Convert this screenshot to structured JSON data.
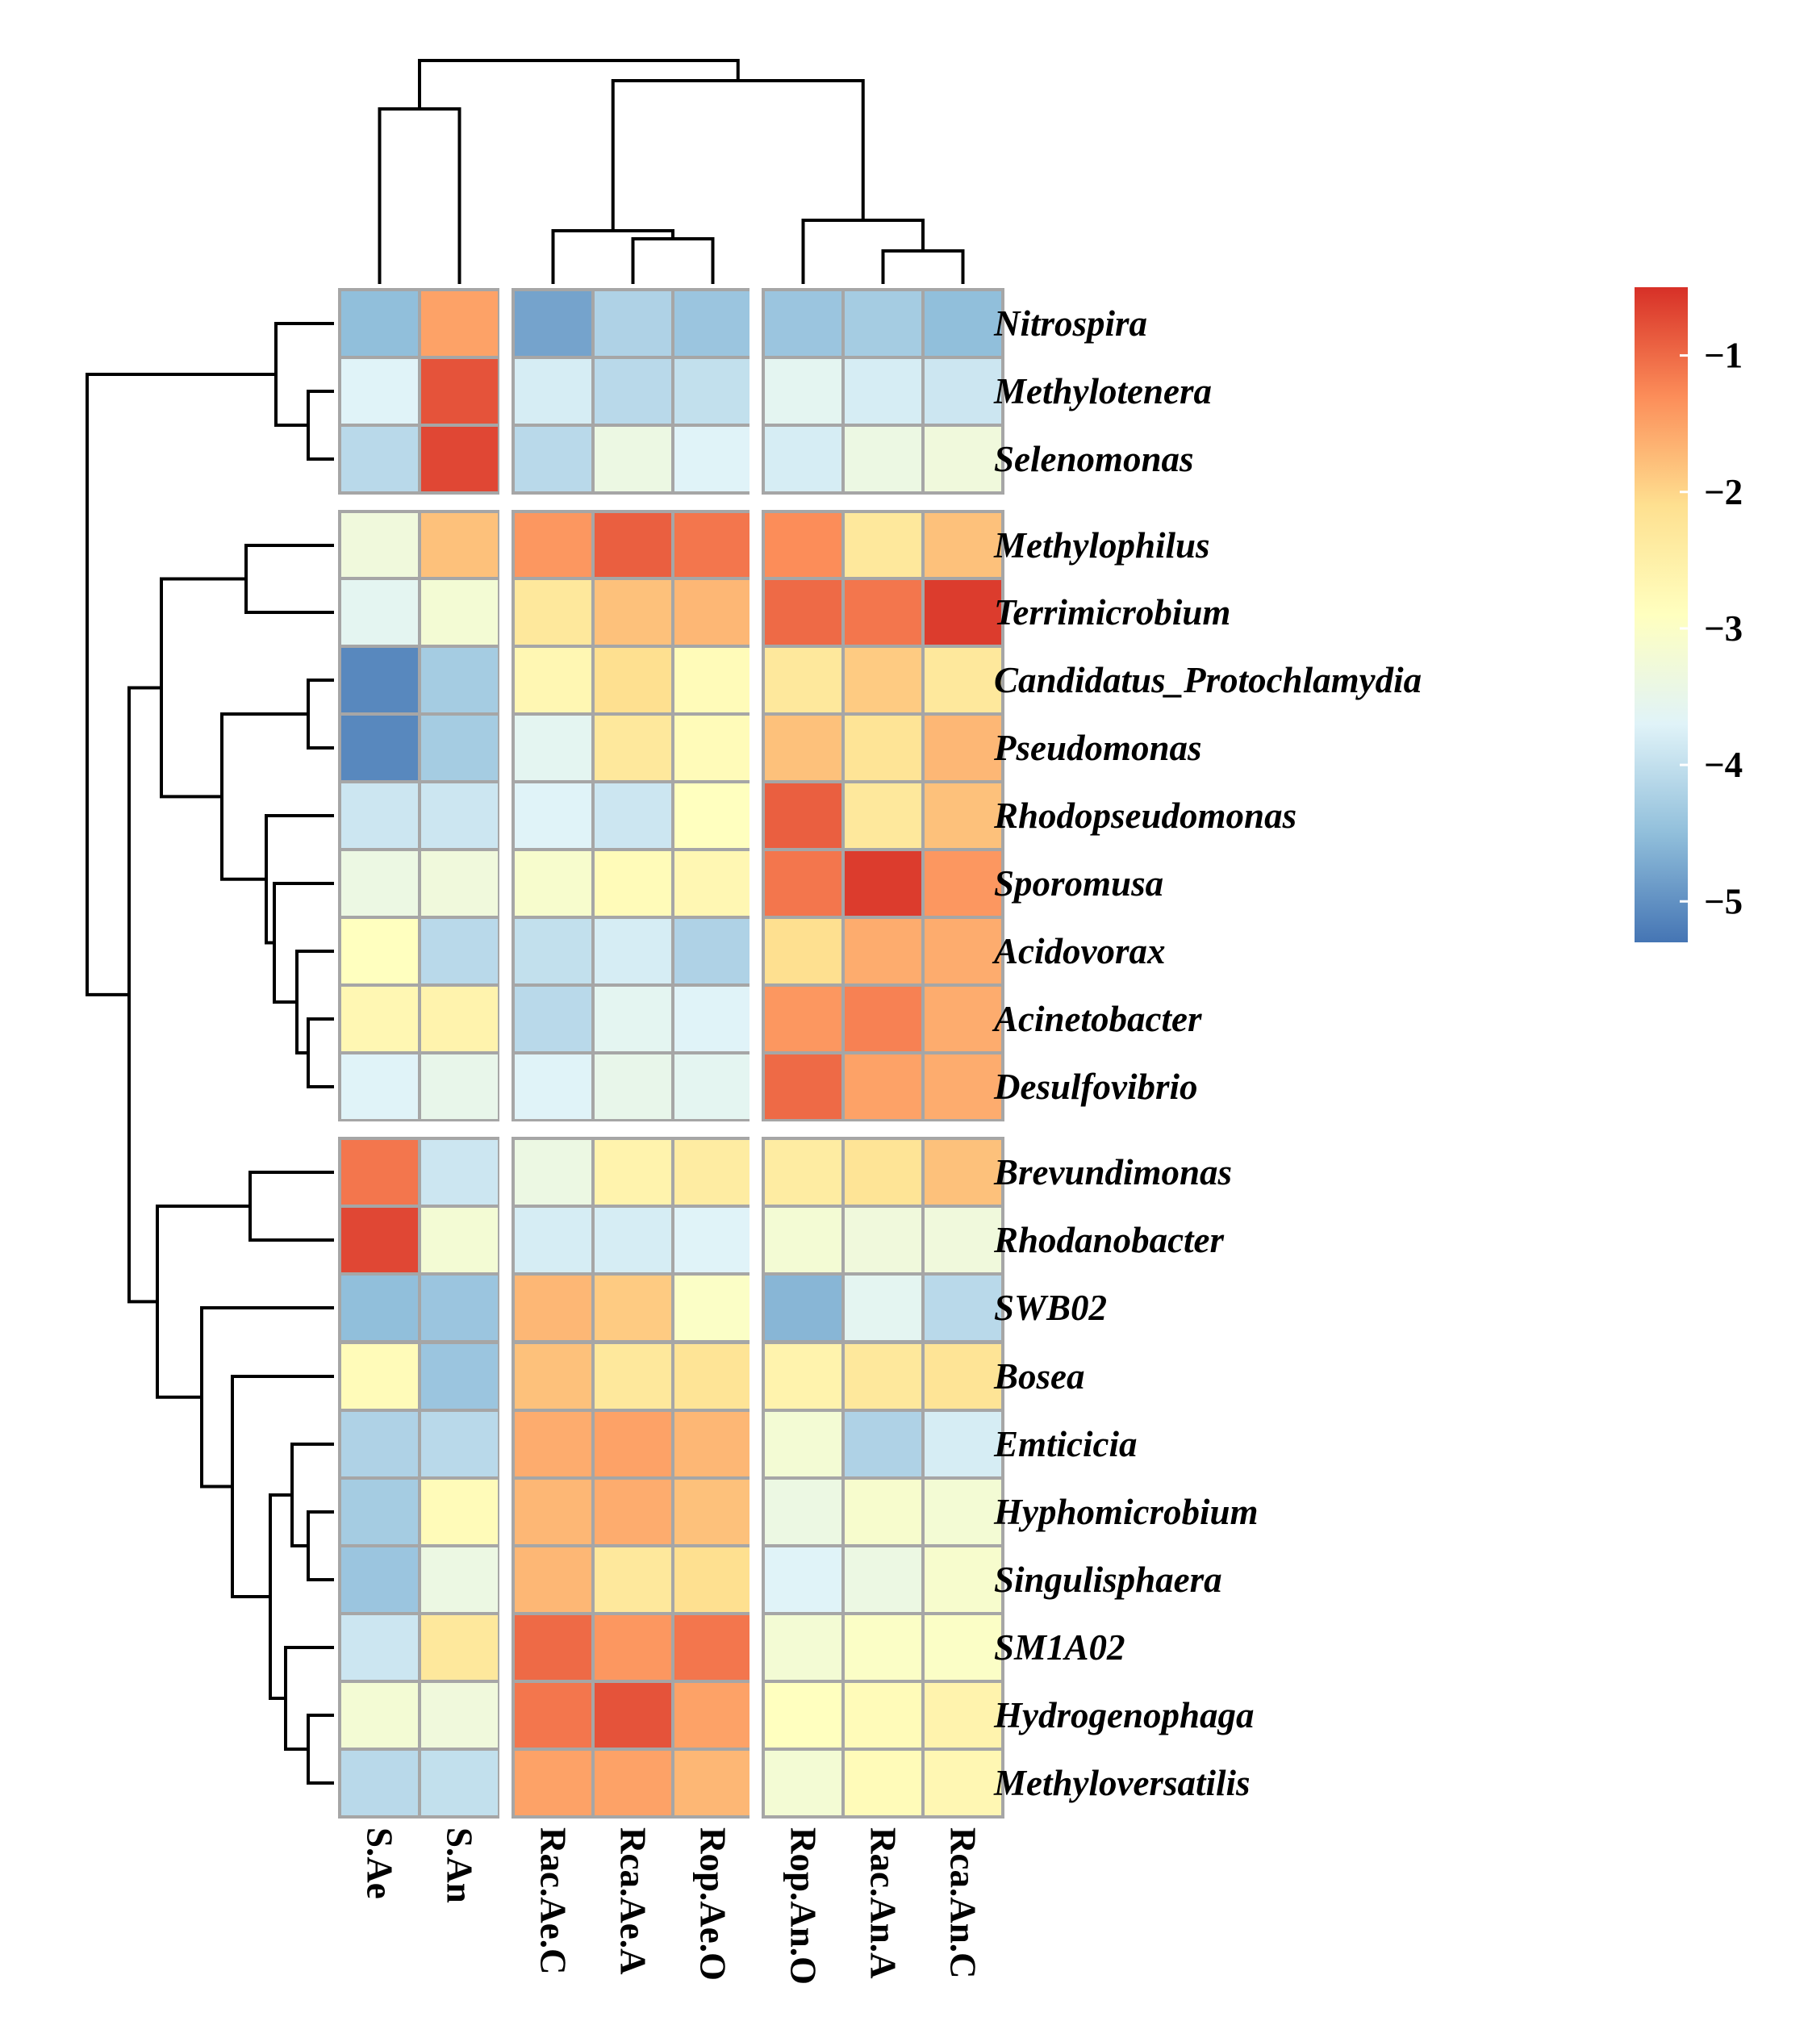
{
  "chart_data": {
    "type": "heatmap",
    "title": "",
    "xlabel": "",
    "ylabel": "",
    "columns": [
      "S.Ae",
      "S.An",
      "Rac.Ae.C",
      "Rca.Ae.A",
      "Rop.Ae.O",
      "Rop.An.O",
      "Rac.An.A",
      "Rca.An.C"
    ],
    "rows": [
      "Nitrospira",
      "Methylotenera",
      "Selenomonas",
      "Methylophilus",
      "Terrimicrobium",
      "Candidatus_Protochlamydia",
      "Pseudomonas",
      "Rhodopseudomonas",
      "Sporomusa",
      "Acidovorax",
      "Acinetobacter",
      "Desulfovibrio",
      "Brevundimonas",
      "Rhodanobacter",
      "SWB02",
      "Bosea",
      "Emticicia",
      "Hyphomicrobium",
      "Singulisphaera",
      "SM1A02",
      "Hydrogenophaga",
      "Methyloversatilis"
    ],
    "values": [
      [
        -4.5,
        -1.5,
        -4.8,
        -4.2,
        -4.4,
        -4.4,
        -4.3,
        -4.5
      ],
      [
        -3.7,
        -0.8,
        -3.8,
        -4.1,
        -4.0,
        -3.6,
        -3.8,
        -3.9
      ],
      [
        -4.1,
        -0.7,
        -4.1,
        -3.4,
        -3.7,
        -3.8,
        -3.4,
        -3.3
      ],
      [
        -3.3,
        -1.8,
        -1.4,
        -0.9,
        -1.1,
        -1.3,
        -2.3,
        -1.8
      ],
      [
        -3.6,
        -3.2,
        -2.3,
        -1.8,
        -1.7,
        -1.0,
        -1.1,
        -0.6
      ],
      [
        -5.1,
        -4.3,
        -2.7,
        -2.1,
        -2.8,
        -2.3,
        -1.9,
        -2.3
      ],
      [
        -5.1,
        -4.3,
        -3.6,
        -2.3,
        -2.8,
        -1.8,
        -2.2,
        -1.7
      ],
      [
        -3.9,
        -3.9,
        -3.7,
        -3.9,
        -2.9,
        -0.9,
        -2.3,
        -1.8
      ],
      [
        -3.4,
        -3.3,
        -3.1,
        -2.8,
        -2.7,
        -1.1,
        -0.6,
        -1.4
      ],
      [
        -2.9,
        -4.1,
        -4.0,
        -3.8,
        -4.2,
        -2.1,
        -1.6,
        -1.6
      ],
      [
        -2.7,
        -2.6,
        -4.1,
        -3.6,
        -3.7,
        -1.4,
        -1.2,
        -1.6
      ],
      [
        -3.7,
        -3.5,
        -3.7,
        -3.5,
        -3.6,
        -1.0,
        -1.5,
        -1.6
      ],
      [
        -1.1,
        -3.9,
        -3.4,
        -2.6,
        -2.4,
        -2.4,
        -2.2,
        -1.8
      ],
      [
        -0.7,
        -3.2,
        -3.8,
        -3.8,
        -3.7,
        -3.2,
        -3.3,
        -3.3
      ],
      [
        -4.5,
        -4.4,
        -1.7,
        -1.9,
        -3.0,
        -4.6,
        -3.6,
        -4.1
      ],
      [
        -2.8,
        -4.4,
        -1.8,
        -2.3,
        -2.2,
        -2.6,
        -2.3,
        -2.2
      ],
      [
        -4.2,
        -4.1,
        -1.6,
        -1.5,
        -1.7,
        -3.2,
        -4.2,
        -3.8
      ],
      [
        -4.3,
        -2.8,
        -1.7,
        -1.6,
        -1.8,
        -3.4,
        -3.1,
        -3.2
      ],
      [
        -4.4,
        -3.4,
        -1.7,
        -2.3,
        -2.1,
        -3.7,
        -3.4,
        -3.1
      ],
      [
        -3.9,
        -2.3,
        -1.0,
        -1.4,
        -1.1,
        -3.2,
        -3.0,
        -3.0
      ],
      [
        -3.2,
        -3.3,
        -1.1,
        -0.8,
        -1.5,
        -2.9,
        -2.8,
        -2.6
      ],
      [
        -4.1,
        -4.0,
        -1.5,
        -1.5,
        -1.7,
        -3.2,
        -2.8,
        -2.7
      ]
    ],
    "row_groups": [
      [
        0,
        2
      ],
      [
        3,
        11
      ],
      [
        12,
        21
      ]
    ],
    "col_groups": [
      [
        0,
        1
      ],
      [
        2,
        4
      ],
      [
        5,
        7
      ]
    ],
    "color_scale": {
      "min": -5.3,
      "max": -0.5,
      "ticks": [
        -1,
        -2,
        -3,
        -4,
        -5
      ],
      "tick_labels": [
        "−1",
        "−2",
        "−3",
        "−4",
        "−5"
      ],
      "colors": [
        "#4575b4",
        "#91bfdb",
        "#e0f3f8",
        "#ffffbf",
        "#fee090",
        "#fc8d59",
        "#d73027"
      ]
    },
    "legend": "right",
    "row_dendrogram": "left",
    "col_dendrogram": "top"
  }
}
